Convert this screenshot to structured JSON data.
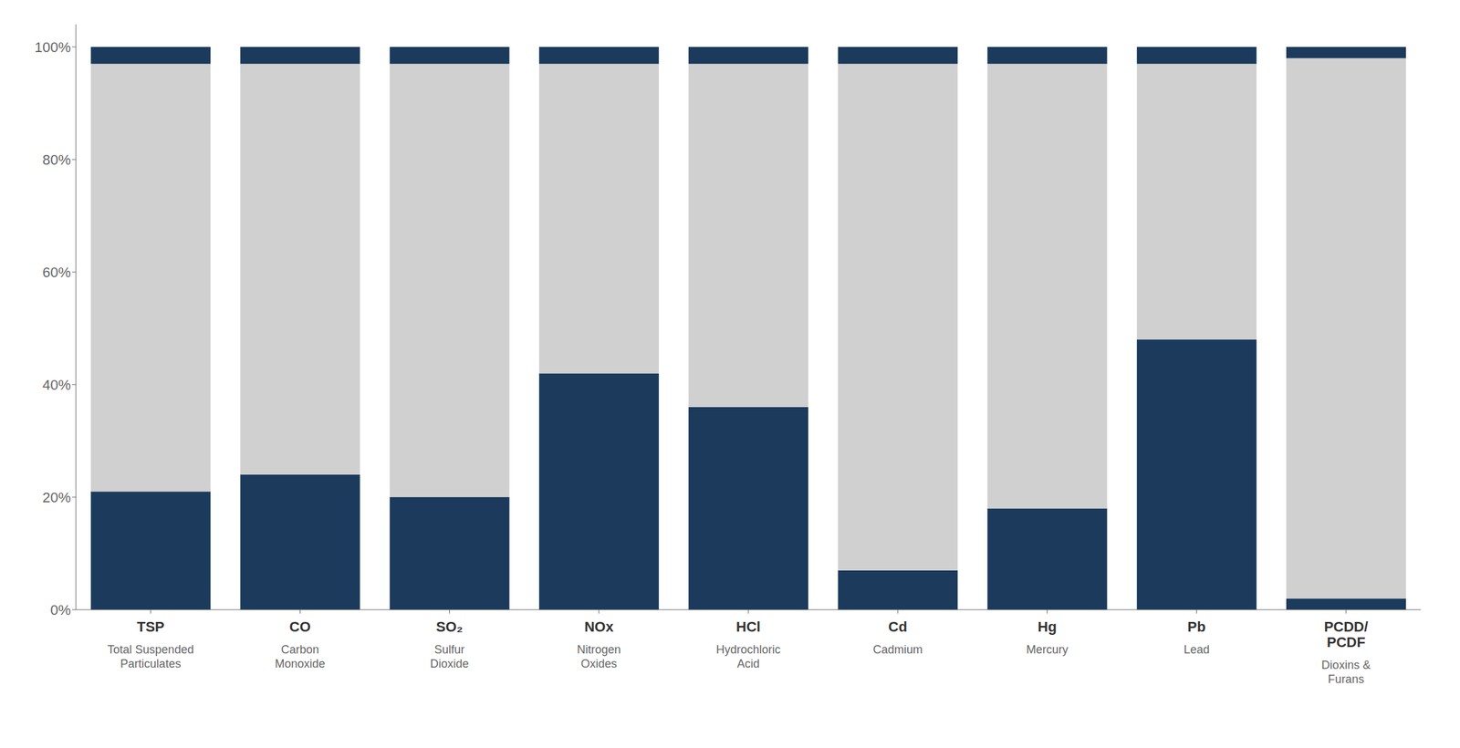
{
  "chart_data": {
    "type": "bar",
    "stacked": true,
    "grid": false,
    "categories": [
      "TSP",
      "CO",
      "SO₂",
      "NOx",
      "HCl",
      "Cd",
      "Hg",
      "Pb",
      "PCDD/\nPCDF"
    ],
    "annotations": [
      "Total Suspended\nParticulates",
      "Carbon\nMonoxide",
      "Sulfur\nDioxide",
      "Nitrogen\nOxides",
      "Hydrochloric\nAcid",
      "Cadmium",
      "Mercury",
      "Lead",
      "Dioxins &\nFurans"
    ],
    "series": [
      {
        "color": "#1B3A5C",
        "values": [
          21,
          24,
          20,
          42,
          36,
          7,
          18,
          48,
          2
        ]
      },
      {
        "color": "#D0D0D0",
        "values": [
          76,
          73,
          77,
          55,
          61,
          90,
          79,
          49,
          96
        ]
      },
      {
        "color": "#1B3A5C",
        "values": [
          3,
          3,
          3,
          3,
          3,
          3,
          3,
          3,
          2
        ]
      }
    ],
    "ylim": [
      0,
      104
    ],
    "yticks": [
      {
        "value": 0,
        "label": "0%"
      },
      {
        "value": 20,
        "label": "20%"
      },
      {
        "value": 40,
        "label": "40%"
      },
      {
        "value": 60,
        "label": "60%"
      },
      {
        "value": 80,
        "label": "80%"
      },
      {
        "value": 100,
        "label": "100%"
      }
    ]
  }
}
